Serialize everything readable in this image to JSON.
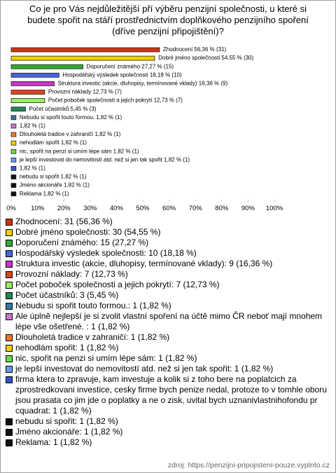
{
  "chart_data": {
    "type": "bar",
    "orientation": "horizontal",
    "title": [
      "Co je pro Vás nejdůležitější pří výběru penzijní společnosti, u které si",
      "budete spořit na stáří prostřednictvím doplňkového penzijního spoření",
      "(dříve penzijní připojištění)?"
    ],
    "values": [
      56.36,
      54.55,
      27.27,
      18.18,
      16.36,
      12.73,
      12.73,
      5.45,
      1.82,
      1.82,
      1.82,
      1.82,
      1.82,
      1.82,
      1.82,
      1.82,
      1.82,
      1.82
    ],
    "value_labels": [
      "Zhodnocení 56,36 % (31)",
      "Dobré jméno společnosti 54,55 % (30)",
      "Doporučení známého 27,27 % (15)",
      "Hospodářský výsledek společnosti 18,18 % (10)",
      "Struktura investic (akcie, dluhopisy, termínované vklady) 16,36 % (9)",
      "Provozní náklady 12,73 % (7)",
      "Počet poboček společnosti a jejich pokrytí 12,73 % (7)",
      "Počet účastníků 5,45 % (3)",
      "Nebudu si spořit touto formou. 1,82 % (1)",
      "1,82 % (1)",
      "Dlouholetá tradice v zahraničí 1,82 % (1)",
      "nehodlám spořit 1,82 % (1)",
      "nic, spořit na penzi si umím lépe sám 1,82 % (1)",
      "je lepší investovat do nemovitostí atd. než si jen tak spořit 1,82 % (1)",
      "1,82 % (1)",
      "nebudu si spořit 1,82 % (1)",
      "Jméno akcionáře 1,82 % (1)",
      "Reklama 1,82 % (1)"
    ],
    "legend_labels": [
      "Zhodnocení: 31 (56,36 %)",
      "Dobré jméno společnosti: 30 (54,55 %)",
      "Doporučení známého: 15 (27,27 %)",
      "Hospodářský výsledek společnosti: 10 (18,18 %)",
      "Struktura investic (akcie, dluhopisy, termínované vklady): 9 (16,36 %)",
      "Provozní náklady: 7 (12,73 %)",
      "Počet poboček společnosti a jejich pokrytí: 7 (12,73 %)",
      "Počet účastníků: 3 (5,45 %)",
      "Nebudu si spořit touto formou.: 1 (1,82 %)",
      "Ale úplně nejlepší je si zvolit vlastní spoření na účtě mimo ČR neboť mají mnohem lépe vše ošetřené. : 1 (1,82 %)",
      "Dlouholetá tradice v zahraničí: 1 (1,82 %)",
      "nehodlám spořit: 1 (1,82 %)",
      "nic, spořit na penzi si umím lépe sám: 1 (1,82 %)",
      "je lepší investovat do nemovitostí atd. než si jen tak spořit: 1 (1,82 %)",
      "firma ktera to zpravuje, kam investuje a kolik si z toho bere na poplatcich za zprostredkovani investice, cesky firme bych penize nedal, protoze to v tomhle oboru jsou prasata co jim jde o poplatky a ne o zisk, uvital bych uznanivlastnihofondu pr cquadrat: 1 (1,82 %)",
      "nebudu si spořit: 1 (1,82 %)",
      "Jméno akcionáře: 1 (1,82 %)",
      "Reklama: 1 (1,82 %)"
    ],
    "colors": [
      "#cc3311",
      "#f0d000",
      "#33aa33",
      "#4466dd",
      "#cc33cc",
      "#dd4422",
      "#99ee66",
      "#228855",
      "#3377aa",
      "#cc77cc",
      "#ee7722",
      "#ffcc00",
      "#66dd44",
      "#6699ee",
      "#3355cc",
      "#111111",
      "#111111",
      "#111111"
    ],
    "xlim": [
      0,
      100
    ],
    "xticks": [
      {
        "value": 0,
        "label": "0%"
      },
      {
        "value": 10,
        "label": "10%"
      },
      {
        "value": 20,
        "label": "20%"
      },
      {
        "value": 30,
        "label": "30%"
      },
      {
        "value": 40,
        "label": "40%"
      },
      {
        "value": 50,
        "label": "50%"
      },
      {
        "value": 60,
        "label": "60%"
      },
      {
        "value": 70,
        "label": "70%"
      },
      {
        "value": 80,
        "label": "80%"
      },
      {
        "value": 90,
        "label": "90%"
      },
      {
        "value": 100,
        "label": "100%"
      }
    ],
    "source": "zdroj: https://penzijni-pripojisteni-pouze.vyplnto.cz"
  }
}
